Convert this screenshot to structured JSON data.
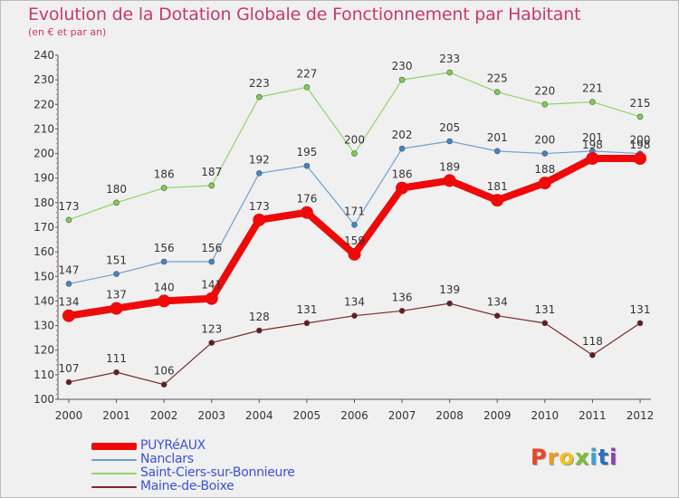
{
  "header": {
    "title": "Evolution de la Dotation Globale de Fonctionnement par Habitant",
    "subtitle": "(en € et par an)"
  },
  "chart_data": {
    "type": "line",
    "title": "Evolution de la Dotation Globale de Fonctionnement par Habitant",
    "subtitle": "(en € et par an)",
    "xlabel": "",
    "ylabel": "",
    "x": [
      "2000",
      "2001",
      "2002",
      "2003",
      "2004",
      "2005",
      "2006",
      "2007",
      "2008",
      "2009",
      "2010",
      "2011",
      "2012"
    ],
    "ylim": [
      100,
      240
    ],
    "yticks": [
      100,
      110,
      120,
      130,
      140,
      150,
      160,
      170,
      180,
      190,
      200,
      210,
      220,
      230,
      240
    ],
    "grid": false,
    "legend_position": "bottom-left",
    "series": [
      {
        "name": "Saint-Ciers-sur-Bonnieure",
        "color": "#8fd46a",
        "marker": "#7ed04a",
        "values": [
          173,
          180,
          186,
          187,
          223,
          227,
          200,
          230,
          233,
          225,
          220,
          221,
          215
        ]
      },
      {
        "name": "Nanclars",
        "color": "#6fa0d0",
        "marker": "#3f86c9",
        "values": [
          147,
          151,
          156,
          156,
          192,
          195,
          171,
          202,
          205,
          201,
          200,
          201,
          200
        ]
      },
      {
        "name": "Maine-de-Boixe",
        "color": "#7a2a2a",
        "marker": "#6b1a1a",
        "values": [
          107,
          111,
          106,
          123,
          128,
          131,
          134,
          136,
          139,
          134,
          131,
          118,
          131
        ]
      },
      {
        "name": "PUYRéAUX",
        "color": "#ee0a0a",
        "marker": "#ee0a0a",
        "values": [
          134,
          137,
          140,
          141,
          173,
          176,
          159,
          186,
          189,
          181,
          188,
          198,
          198
        ]
      }
    ],
    "legend_order": [
      "PUYRéAUX",
      "Nanclars",
      "Saint-Ciers-sur-Bonnieure",
      "Maine-de-Boixe"
    ]
  },
  "logo": {
    "text": "Proxiti",
    "colors": [
      "#e8452a",
      "#f39a1c",
      "#f2c31a",
      "#7dbd3a",
      "#3aa0d8",
      "#2b6fc1",
      "#8a3fb8"
    ]
  }
}
